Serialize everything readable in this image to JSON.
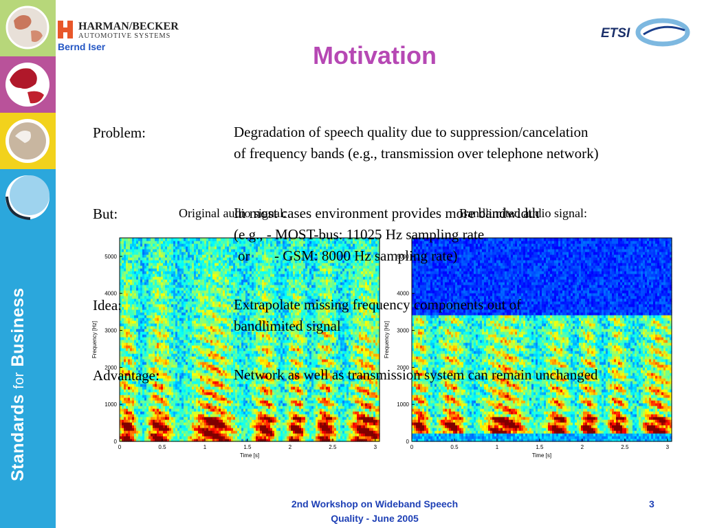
{
  "header": {
    "company_name": "HARMAN/BECKER",
    "company_sub": "AUTOMOTIVE SYSTEMS",
    "author": "Bernd Iser",
    "title": "Motivation",
    "etsi_logo_text": "ETSI"
  },
  "sidebar": {
    "text_bold": "Standards",
    "text_for": "for",
    "text_bold2": "Business"
  },
  "spectrograms": [
    {
      "title": "Original audio signal:",
      "ylabel": "Frequency [Hz]",
      "xlabel": "Time [s]",
      "xticks": [
        "0",
        "0.5",
        "1",
        "1.5",
        "2",
        "2.5",
        "3"
      ],
      "yticks": [
        "0",
        "1000",
        "2000",
        "3000",
        "4000",
        "5000"
      ]
    },
    {
      "title": "Bandlimited audio signal:",
      "ylabel": "Frequency [Hz]",
      "xlabel": "Time [s]",
      "xticks": [
        "0",
        "0.5",
        "1",
        "1.5",
        "2",
        "2.5",
        "3"
      ],
      "yticks": [
        "0",
        "1000",
        "2000",
        "3000",
        "4000",
        "5000"
      ]
    }
  ],
  "content": {
    "problem_label": "Problem:",
    "problem_line1": "Degradation of speech quality due to suppression/cancelation",
    "problem_line2": "of frequency bands (e.g., transmission over telephone network)",
    "but_label": "But:",
    "but_line1": "In most cases environment provides more bandwidth",
    "but_line2": "(e.g., - MOST-bus: 11025 Hz sampling rate",
    "but_line3_or": "or",
    "but_line3": "- GSM: 8000 Hz sampling rate)",
    "idea_label": "Idea:",
    "idea_line1": "Extrapolate missing frequency components out of",
    "idea_line2": "bandlimited signal",
    "advantage_label": "Advantage:",
    "advantage_line1": "Network as well as transmission system can remain unchanged"
  },
  "footer": {
    "line1": "2nd Workshop on Wideband Speech",
    "line2": "Quality - June 2005",
    "page_number": "3"
  },
  "colors": {
    "sidebar_blue": "#2ba7dc",
    "title_purple": "#b648b4",
    "footer_blue": "#1d3fb5",
    "author_blue": "#2356c4"
  }
}
